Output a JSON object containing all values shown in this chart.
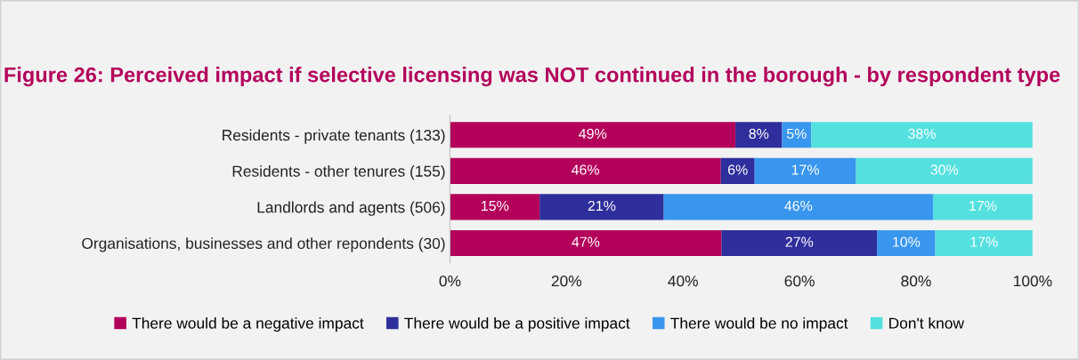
{
  "chart_data": {
    "type": "bar",
    "orientation": "horizontal",
    "stacked": true,
    "title": "Figure 26: Perceived impact if selective licensing was NOT continued in the borough - by respondent type",
    "categories": [
      "Residents - private tenants (133)",
      "Residents - other tenures (155)",
      "Landlords and agents (506)",
      "Organisations, businesses and other repondents (30)"
    ],
    "series": [
      {
        "name": "There would be a negative impact",
        "color": "#b3005a",
        "values": [
          49,
          46.5,
          15.4,
          46.6
        ],
        "value_labels": [
          "49%",
          "46%",
          "15%",
          "47%"
        ]
      },
      {
        "name": "There would be a positive impact",
        "color": "#2e2e9c",
        "values": [
          8,
          5.8,
          21.3,
          26.7
        ],
        "value_labels": [
          "8%",
          "6%",
          "21%",
          "27%"
        ]
      },
      {
        "name": "There would be no impact",
        "color": "#3896ee",
        "values": [
          5,
          17.4,
          46.2,
          10
        ],
        "value_labels": [
          "5%",
          "17%",
          "46%",
          "10%"
        ]
      },
      {
        "name": "Don't know",
        "color": "#55e0e0",
        "values": [
          38,
          30.3,
          17.1,
          16.7
        ],
        "value_labels": [
          "38%",
          "30%",
          "17%",
          "17%"
        ]
      }
    ],
    "xlim": [
      0,
      100
    ],
    "xticks": [
      {
        "value": 0,
        "label": "0%"
      },
      {
        "value": 20,
        "label": "20%"
      },
      {
        "value": 40,
        "label": "40%"
      },
      {
        "value": 60,
        "label": "60%"
      },
      {
        "value": 80,
        "label": "80%"
      },
      {
        "value": 100,
        "label": "100%"
      }
    ],
    "grid": false,
    "legend": "bottom"
  }
}
